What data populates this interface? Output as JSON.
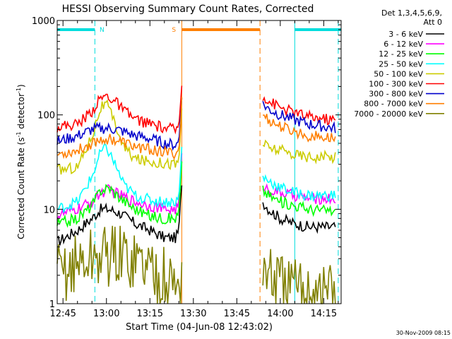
{
  "chart_data": {
    "type": "line",
    "title": "HESSI Observing Summary Count Rates, Corrected",
    "xlabel": "Start Time (04-Jun-08 12:43:02)",
    "ylabel": "Corrected Count Rate (s",
    "ylabel_sup1": "-1",
    "ylabel_mid": " detector",
    "ylabel_sup2": "-1",
    "ylabel_end": ")",
    "y_scale": "log",
    "ylim": [
      1,
      1000
    ],
    "xlim": [
      "12:43",
      "14:21"
    ],
    "x_ticks": [
      "12:45",
      "13:00",
      "13:15",
      "13:30",
      "13:45",
      "14:00",
      "14:15"
    ],
    "y_ticks": [
      "1",
      "10",
      "100",
      "1000"
    ],
    "date_stamp": "30-Nov-2009 08:15",
    "legend_title_1": "Det 1,3,4,5,6,9,",
    "legend_title_2": "Att 0",
    "legend_placement": "right",
    "gap": [
      "13:26",
      "13:53"
    ],
    "flags": [
      {
        "label": "N",
        "color": "#00dddd",
        "segments": [
          [
            "12:43",
            "12:56"
          ],
          [
            "14:05",
            "14:21"
          ]
        ]
      },
      {
        "label": "S",
        "color": "#ff7f00",
        "segments": [
          [
            "13:26",
            "13:53"
          ]
        ]
      }
    ],
    "event_lines": [
      {
        "time": "12:56",
        "color": "#00dddd",
        "style": "dashed"
      },
      {
        "time": "14:05",
        "color": "#00dddd",
        "style": "solid"
      },
      {
        "time": "14:20",
        "color": "#00dddd",
        "style": "dashed"
      },
      {
        "time": "13:26",
        "color": "#ff7f00",
        "style": "solid"
      },
      {
        "time": "13:53",
        "color": "#ff7f00",
        "style": "dashed"
      }
    ],
    "series": [
      {
        "name": "3 - 6 keV",
        "color": "#000000",
        "points": [
          [
            "12:43",
            4.5
          ],
          [
            "12:50",
            6
          ],
          [
            "12:55",
            8
          ],
          [
            "12:58",
            10
          ],
          [
            "13:01",
            10
          ],
          [
            "13:05",
            9
          ],
          [
            "13:10",
            7
          ],
          [
            "13:15",
            6
          ],
          [
            "13:20",
            5
          ],
          [
            "13:24",
            5
          ],
          [
            "13:25",
            6
          ],
          [
            "13:26",
            20
          ]
        ],
        "points2": [
          [
            "13:54",
            12
          ],
          [
            "13:56",
            10
          ],
          [
            "14:00",
            8
          ],
          [
            "14:05",
            7
          ],
          [
            "14:10",
            6.5
          ],
          [
            "14:19",
            6.5
          ]
        ]
      },
      {
        "name": "6 - 12 keV",
        "color": "#ff00ff",
        "points": [
          [
            "12:43",
            8.5
          ],
          [
            "12:50",
            10
          ],
          [
            "12:55",
            12
          ],
          [
            "12:58",
            15
          ],
          [
            "13:01",
            16
          ],
          [
            "13:05",
            14
          ],
          [
            "13:10",
            12
          ],
          [
            "13:15",
            11
          ],
          [
            "13:20",
            10
          ],
          [
            "13:24",
            10
          ],
          [
            "13:25",
            11
          ],
          [
            "13:26",
            35
          ]
        ],
        "points2": [
          [
            "13:54",
            18
          ],
          [
            "13:56",
            16
          ],
          [
            "14:00",
            15
          ],
          [
            "14:05",
            14
          ],
          [
            "14:10",
            13
          ],
          [
            "14:19",
            13
          ]
        ]
      },
      {
        "name": "12 - 25 keV",
        "color": "#00ff00",
        "points": [
          [
            "12:43",
            7
          ],
          [
            "12:50",
            8
          ],
          [
            "12:55",
            11
          ],
          [
            "12:58",
            16
          ],
          [
            "13:01",
            17
          ],
          [
            "13:05",
            13
          ],
          [
            "13:10",
            10
          ],
          [
            "13:15",
            8.5
          ],
          [
            "13:20",
            8
          ],
          [
            "13:24",
            8
          ],
          [
            "13:25",
            9
          ],
          [
            "13:26",
            30
          ]
        ],
        "points2": [
          [
            "13:54",
            16
          ],
          [
            "13:56",
            14
          ],
          [
            "14:00",
            12
          ],
          [
            "14:05",
            11
          ],
          [
            "14:10",
            10
          ],
          [
            "14:19",
            9.5
          ]
        ]
      },
      {
        "name": "25 - 50 keV",
        "color": "#00ffff",
        "points": [
          [
            "12:43",
            10
          ],
          [
            "12:50",
            12
          ],
          [
            "12:55",
            22
          ],
          [
            "12:58",
            40
          ],
          [
            "13:00",
            45
          ],
          [
            "13:03",
            30
          ],
          [
            "13:06",
            18
          ],
          [
            "13:10",
            14
          ],
          [
            "13:15",
            12.5
          ],
          [
            "13:20",
            12
          ],
          [
            "13:24",
            12
          ],
          [
            "13:25",
            13
          ],
          [
            "13:26",
            45
          ]
        ],
        "points2": [
          [
            "13:54",
            22
          ],
          [
            "13:56",
            20
          ],
          [
            "14:00",
            17
          ],
          [
            "14:05",
            15
          ],
          [
            "14:10",
            14
          ],
          [
            "14:19",
            14
          ]
        ]
      },
      {
        "name": "50 - 100 keV",
        "color": "#cccc00",
        "points": [
          [
            "12:43",
            26
          ],
          [
            "12:50",
            28
          ],
          [
            "12:55",
            60
          ],
          [
            "12:58",
            120
          ],
          [
            "13:00",
            130
          ],
          [
            "13:03",
            80
          ],
          [
            "13:06",
            45
          ],
          [
            "13:10",
            34
          ],
          [
            "13:15",
            32
          ],
          [
            "13:20",
            31
          ],
          [
            "13:24",
            30
          ],
          [
            "13:25",
            32
          ],
          [
            "13:26",
            120
          ]
        ],
        "points2": [
          [
            "13:54",
            50
          ],
          [
            "13:56",
            45
          ],
          [
            "14:00",
            42
          ],
          [
            "14:05",
            38
          ],
          [
            "14:10",
            36
          ],
          [
            "14:19",
            36
          ]
        ]
      },
      {
        "name": "100 - 300 keV",
        "color": "#ff0000",
        "points": [
          [
            "12:43",
            75
          ],
          [
            "12:50",
            80
          ],
          [
            "12:55",
            110
          ],
          [
            "12:58",
            150
          ],
          [
            "13:00",
            160
          ],
          [
            "13:03",
            140
          ],
          [
            "13:06",
            110
          ],
          [
            "13:10",
            90
          ],
          [
            "13:15",
            80
          ],
          [
            "13:20",
            72
          ],
          [
            "13:24",
            70
          ],
          [
            "13:25",
            75
          ],
          [
            "13:26",
            220
          ]
        ],
        "points2": [
          [
            "13:54",
            160
          ],
          [
            "13:56",
            140
          ],
          [
            "14:00",
            120
          ],
          [
            "14:05",
            105
          ],
          [
            "14:10",
            95
          ],
          [
            "14:19",
            88
          ]
        ]
      },
      {
        "name": "300 - 800 keV",
        "color": "#0000cc",
        "points": [
          [
            "12:43",
            52
          ],
          [
            "12:50",
            60
          ],
          [
            "12:55",
            70
          ],
          [
            "12:58",
            72
          ],
          [
            "13:01",
            72
          ],
          [
            "13:05",
            68
          ],
          [
            "13:10",
            60
          ],
          [
            "13:15",
            56
          ],
          [
            "13:20",
            50
          ],
          [
            "13:24",
            48
          ],
          [
            "13:25",
            52
          ],
          [
            "13:26",
            170
          ]
        ],
        "points2": [
          [
            "13:54",
            130
          ],
          [
            "13:56",
            115
          ],
          [
            "14:00",
            100
          ],
          [
            "14:05",
            88
          ],
          [
            "14:10",
            80
          ],
          [
            "14:19",
            72
          ]
        ]
      },
      {
        "name": "800 - 7000 keV",
        "color": "#ff7f00",
        "points": [
          [
            "12:43",
            38
          ],
          [
            "12:50",
            42
          ],
          [
            "12:55",
            50
          ],
          [
            "12:58",
            55
          ],
          [
            "13:01",
            56
          ],
          [
            "13:05",
            52
          ],
          [
            "13:10",
            46
          ],
          [
            "13:15",
            43
          ],
          [
            "13:20",
            40
          ],
          [
            "13:24",
            39
          ],
          [
            "13:25",
            42
          ],
          [
            "13:26",
            140
          ]
        ],
        "points2": [
          [
            "13:54",
            100
          ],
          [
            "13:56",
            88
          ],
          [
            "14:00",
            75
          ],
          [
            "14:05",
            66
          ],
          [
            "14:10",
            60
          ],
          [
            "14:19",
            56
          ]
        ]
      },
      {
        "name": "7000 - 20000 keV",
        "color": "#808000",
        "points": [
          [
            "12:43",
            2
          ],
          [
            "12:48",
            2.5
          ],
          [
            "12:52",
            2.8
          ],
          [
            "12:55",
            3
          ],
          [
            "13:00",
            3.3
          ],
          [
            "13:05",
            3.2
          ],
          [
            "13:10",
            3
          ],
          [
            "13:15",
            2.5
          ],
          [
            "13:20",
            1.8
          ],
          [
            "13:24",
            1.5
          ],
          [
            "13:26",
            2
          ]
        ],
        "points2": [
          [
            "13:54",
            2.5
          ],
          [
            "13:56",
            2
          ],
          [
            "14:00",
            1.6
          ],
          [
            "14:05",
            1.4
          ],
          [
            "14:10",
            1.4
          ],
          [
            "14:19",
            1.4
          ]
        ]
      }
    ]
  }
}
